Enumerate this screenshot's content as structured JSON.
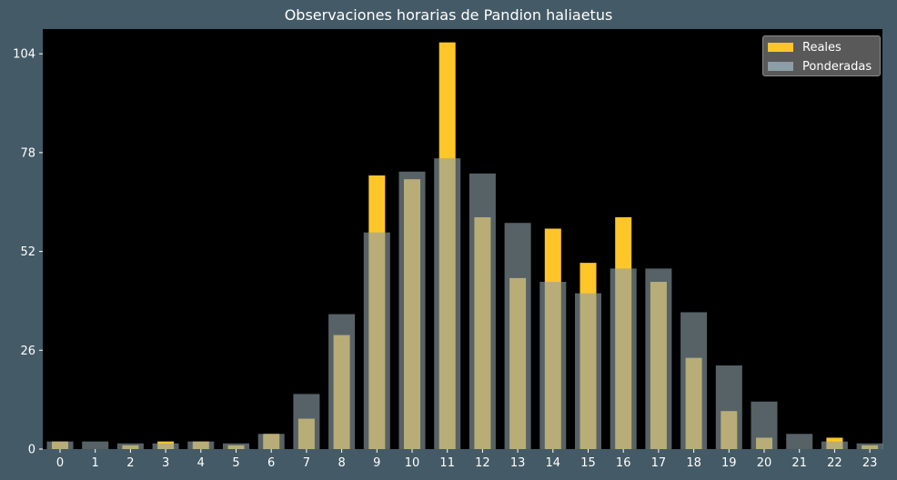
{
  "chart_data": {
    "type": "bar",
    "title": "Observaciones horarias de Pandion haliaetus",
    "xlabel": "",
    "ylabel": "",
    "categories": [
      "0",
      "1",
      "2",
      "3",
      "4",
      "5",
      "6",
      "7",
      "8",
      "9",
      "10",
      "11",
      "12",
      "13",
      "14",
      "15",
      "16",
      "17",
      "18",
      "19",
      "20",
      "21",
      "22",
      "23"
    ],
    "yticks": [
      0,
      26,
      52,
      78,
      104
    ],
    "ylim": [
      0,
      110.5
    ],
    "grid": false,
    "legend_position": "top-right",
    "series": [
      {
        "name": "Reales",
        "color": "#ffc629",
        "values": [
          2,
          0,
          1,
          2,
          2,
          1,
          4,
          8,
          30,
          72,
          71,
          107,
          61,
          45,
          58,
          49,
          61,
          44,
          24,
          10,
          3,
          0,
          3,
          1
        ]
      },
      {
        "name": "Ponderadas",
        "color": "#8c9ea6",
        "values": [
          2,
          2,
          1.5,
          1.5,
          2,
          1.5,
          4,
          14.5,
          35.5,
          57,
          73,
          76.5,
          72.5,
          59.5,
          44,
          41,
          47.5,
          47.5,
          36,
          22,
          12.5,
          4,
          2,
          1.5
        ]
      }
    ]
  }
}
